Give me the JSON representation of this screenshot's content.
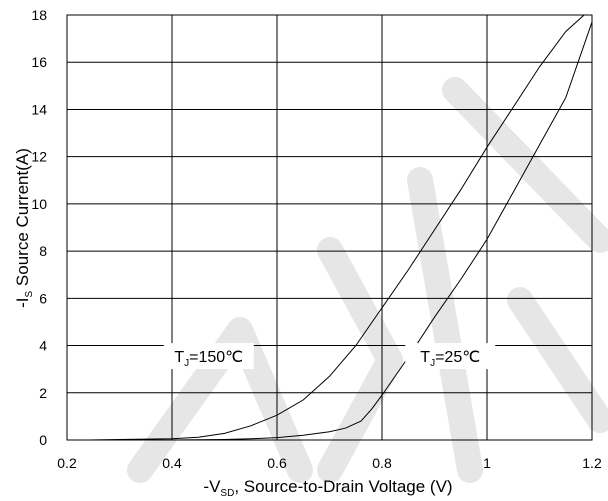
{
  "chart_data": {
    "type": "line",
    "xlabel_parts": [
      "-V",
      "SD",
      ", Source-to-Drain Voltage (V)"
    ],
    "ylabel_parts": [
      "-I",
      "S",
      " Source Current(A)"
    ],
    "xlim": [
      0.2,
      1.2
    ],
    "ylim": [
      0,
      18
    ],
    "x_ticks": [
      0.2,
      0.4,
      0.6,
      0.8,
      1.0,
      1.2
    ],
    "x_tick_labels": [
      "0.2",
      "0.4",
      "0.6",
      "0.8",
      "1",
      "1.2"
    ],
    "y_ticks": [
      0,
      2,
      4,
      6,
      8,
      10,
      12,
      14,
      16,
      18
    ],
    "y_tick_labels": [
      "0",
      "2",
      "4",
      "6",
      "8",
      "10",
      "12",
      "14",
      "16",
      "18"
    ],
    "grid": true,
    "legend": "none",
    "series": [
      {
        "name_parts": [
          "T",
          "J",
          "=150℃"
        ],
        "x": [
          0.24,
          0.3,
          0.4,
          0.45,
          0.5,
          0.55,
          0.6,
          0.65,
          0.7,
          0.75,
          0.8,
          0.85,
          0.9,
          0.95,
          1.0,
          1.05,
          1.1,
          1.15,
          1.185
        ],
        "y": [
          0.0,
          0.02,
          0.05,
          0.12,
          0.28,
          0.6,
          1.05,
          1.7,
          2.7,
          4.0,
          5.6,
          7.2,
          8.9,
          10.6,
          12.4,
          14.1,
          15.8,
          17.3,
          18.0
        ]
      },
      {
        "name_parts": [
          "T",
          "J",
          "=25℃"
        ],
        "x": [
          0.24,
          0.3,
          0.4,
          0.5,
          0.55,
          0.6,
          0.65,
          0.7,
          0.73,
          0.76,
          0.78,
          0.8,
          0.85,
          0.9,
          0.95,
          1.0,
          1.05,
          1.1,
          1.15,
          1.2
        ],
        "y": [
          0.0,
          0.0,
          0.0,
          0.02,
          0.05,
          0.1,
          0.2,
          0.35,
          0.5,
          0.8,
          1.3,
          1.9,
          3.5,
          5.2,
          6.8,
          8.5,
          10.5,
          12.5,
          14.5,
          17.7
        ]
      }
    ],
    "annotations": [
      {
        "series": 0,
        "x": 0.47,
        "y": 3.3
      },
      {
        "series": 1,
        "x": 0.93,
        "y": 3.3
      }
    ]
  }
}
